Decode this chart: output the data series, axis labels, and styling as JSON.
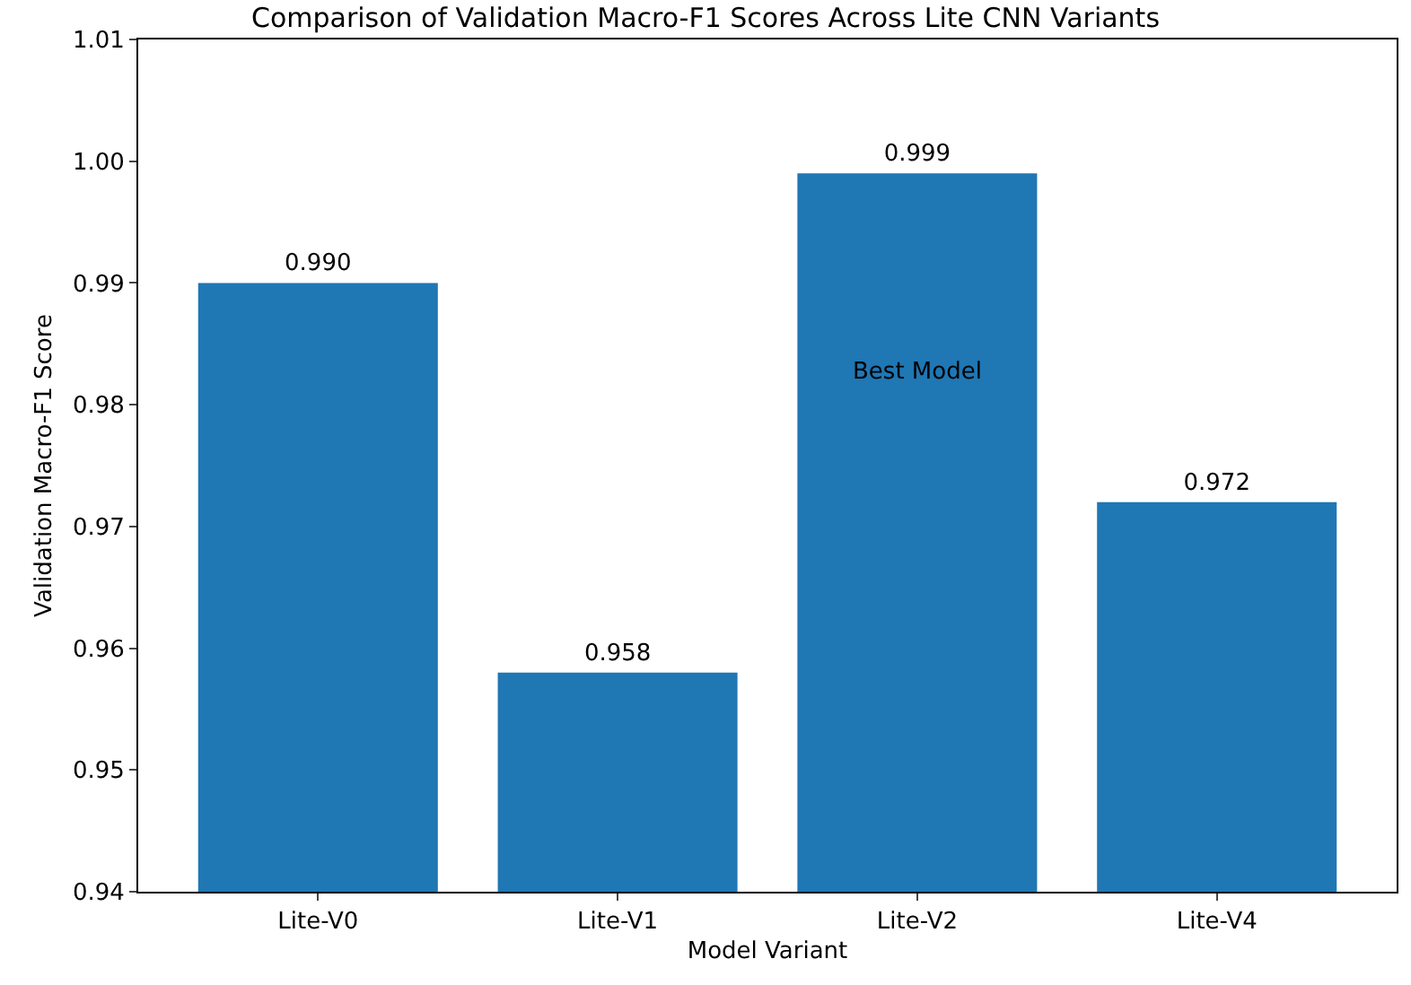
{
  "chart_data": {
    "type": "bar",
    "title": "Comparison of Validation Macro-F1 Scores Across Lite CNN Variants",
    "xlabel": "Model Variant",
    "ylabel": "Validation Macro-F1 Score",
    "categories": [
      "Lite-V0",
      "Lite-V1",
      "Lite-V2",
      "Lite-V4"
    ],
    "values": [
      0.99,
      0.958,
      0.999,
      0.972
    ],
    "value_labels": [
      "0.990",
      "0.958",
      "0.999",
      "0.972"
    ],
    "color": "#1f77b4",
    "ylim": [
      0.94,
      1.01
    ],
    "yticks": [
      {
        "value": 0.94,
        "label": "0.94"
      },
      {
        "value": 0.95,
        "label": "0.95"
      },
      {
        "value": 0.96,
        "label": "0.96"
      },
      {
        "value": 0.97,
        "label": "0.97"
      },
      {
        "value": 0.98,
        "label": "0.98"
      },
      {
        "value": 0.99,
        "label": "0.99"
      },
      {
        "value": 1.0,
        "label": "1.00"
      },
      {
        "value": 1.01,
        "label": "1.01"
      }
    ],
    "annotations": [
      "Best Model"
    ]
  }
}
